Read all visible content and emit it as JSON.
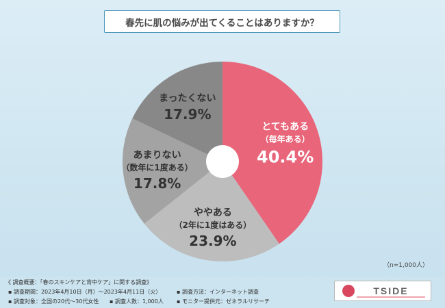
{
  "title": "春先に肌の悩みが出てくることはありますか？",
  "sample_note": "（n=1,000人）",
  "survey": {
    "overview": "《 調査概要：「春のスキンケアと背中ケア」に関する調査》",
    "period": "▪ 調査期間：2023年4月10日（月）～2023年4月11日（火）",
    "method": "▪ 調査方法：インターネット調査",
    "target": "▪ 調査対象：全国の20代～30代女性",
    "count": "▪ 調査人数：1,000人",
    "provider": "▪ モニター提供元：ゼネラルリサーチ"
  },
  "logo_text": "TSIDE",
  "colors": {
    "accent": "#e8657a",
    "gray_dark": "#888888",
    "gray_mid": "#a3a3a3",
    "gray_light": "#bdbdbd",
    "title_border": "#4d97b8"
  },
  "chart_data": {
    "type": "pie",
    "donut": true,
    "title": "春先に肌の悩みが出てくることはありますか？",
    "slices": [
      {
        "label": "とてもある",
        "sublabel": "（毎年ある）",
        "value": 40.4,
        "display": "40.4%",
        "color": "#e8657a"
      },
      {
        "label": "ややある",
        "sublabel": "（2年に1度はある）",
        "value": 23.9,
        "display": "23.9%",
        "color": "#bdbdbd"
      },
      {
        "label": "あまりない",
        "sublabel": "（数年に1度ある）",
        "value": 17.8,
        "display": "17.8%",
        "color": "#a3a3a3"
      },
      {
        "label": "まったくない",
        "sublabel": "",
        "value": 17.9,
        "display": "17.9%",
        "color": "#888888"
      }
    ]
  }
}
